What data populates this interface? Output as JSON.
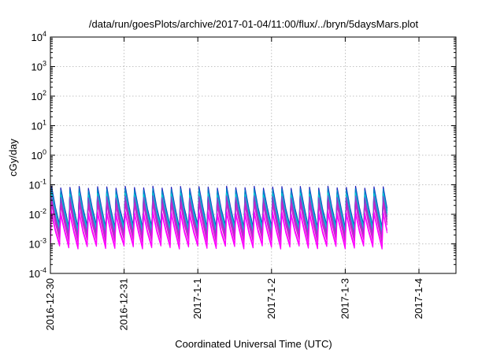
{
  "chart_data": {
    "type": "line",
    "title": "/data/run/goesPlots/archive/2017-01-04/11:00/flux/../bryn/5daysMars.plot",
    "xlabel": "Coordinated Universal Time (UTC)",
    "ylabel": "cGy/day",
    "y_scale": "log",
    "ylim": [
      0.0001,
      10000
    ],
    "xlim": [
      "2016-12-30",
      "2017-01-04T12:00"
    ],
    "grid": true,
    "legend": "none",
    "x_ticks": [
      "2016-12-30",
      "2016-12-31",
      "2017-1-1",
      "2017-1-2",
      "2017-1-3",
      "2017-1-4"
    ],
    "y_ticks": [
      {
        "base": "10",
        "exp": "-4"
      },
      {
        "base": "10",
        "exp": "-3"
      },
      {
        "base": "10",
        "exp": "-2"
      },
      {
        "base": "10",
        "exp": "-1"
      },
      {
        "base": "10",
        "exp": "0"
      },
      {
        "base": "10",
        "exp": "1"
      },
      {
        "base": "10",
        "exp": "2"
      },
      {
        "base": "10",
        "exp": "3"
      },
      {
        "base": "10",
        "exp": "4"
      }
    ],
    "sawtooth_cycles": 44,
    "sawtooth_period_hours": 3,
    "series": [
      {
        "color": "#2222bb",
        "peak": 0.085,
        "trough": 0.004
      },
      {
        "color": "#0088cc",
        "peak": 0.07,
        "trough": 0.0035
      },
      {
        "color": "#00d0d0",
        "peak": 0.05,
        "trough": 0.003
      },
      {
        "color": "#8844cc",
        "peak": 0.04,
        "trough": 0.0022
      },
      {
        "color": "#cc22cc",
        "peak": 0.025,
        "trough": 0.0015
      },
      {
        "color": "#ff00ff",
        "peak": 0.012,
        "trough": 0.0009
      }
    ]
  }
}
